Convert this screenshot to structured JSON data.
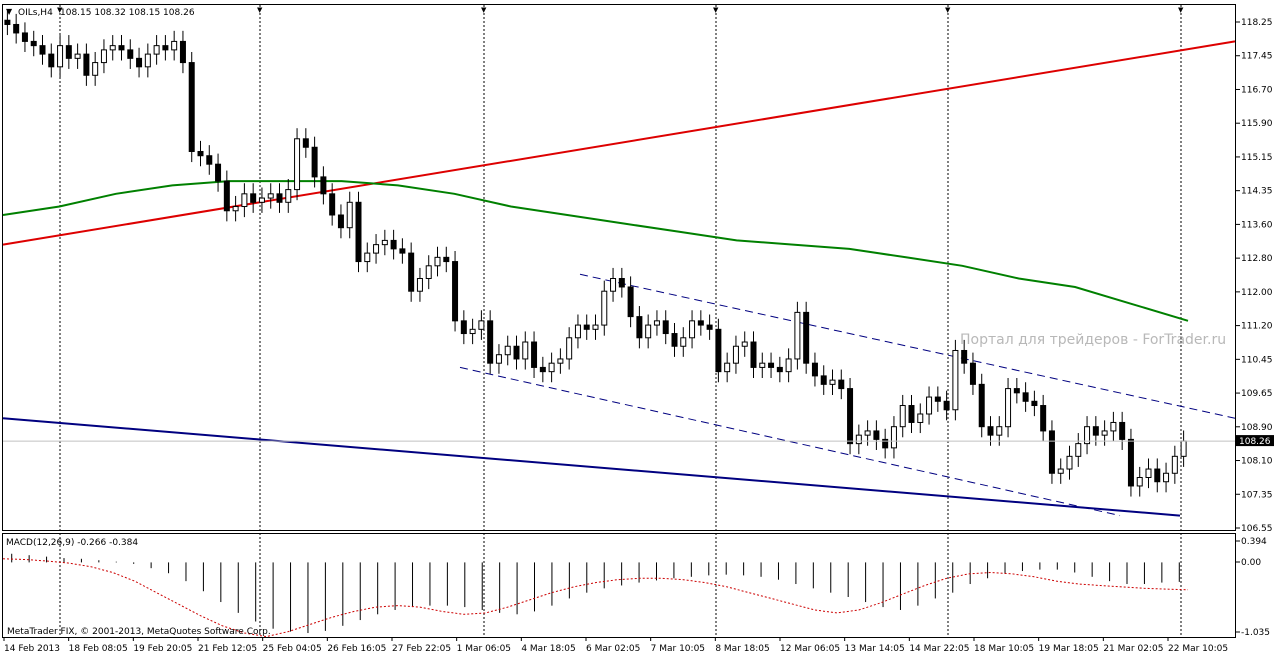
{
  "header": {
    "symbol_label": "OILs,H4",
    "ohlc_label": "108.15 108.32 108.15 108.26"
  },
  "watermark": "Портал для трейдеров - ForTrader.ru",
  "copyright": "MetaTrader FIX, © 2001-2013, MetaQuotes Software Corp.",
  "colors": {
    "background": "#ffffff",
    "candle": "#000000",
    "ma_line": "#008000",
    "trend_up": "#dd0000",
    "trend_down": "#000080",
    "channel": "#000080",
    "macd_signal": "#cc0000"
  },
  "chart_data": [
    {
      "type": "candlestick",
      "title": "",
      "timeframe": "H4",
      "ylim": [
        106.16,
        118.56
      ],
      "price_ticks": [
        "118.25",
        "117.45",
        "116.70",
        "115.90",
        "115.15",
        "114.35",
        "113.60",
        "112.80",
        "112.00",
        "111.20",
        "110.45",
        "109.65",
        "108.90",
        "108.10",
        "107.35",
        "106.55"
      ],
      "current_price": 108.26,
      "current_price_label": "108.26",
      "x_labels": [
        "14 Feb 2013",
        "18 Feb 08:05",
        "19 Feb 20:05",
        "21 Feb 12:05",
        "25 Feb 04:05",
        "26 Feb 16:05",
        "27 Feb 22:05",
        "1 Mar 06:05",
        "4 Mar 18:05",
        "6 Mar 02:05",
        "7 Mar 10:05",
        "8 Mar 18:05",
        "12 Mar 06:05",
        "13 Mar 14:05",
        "14 Mar 22:05",
        "18 Mar 10:05",
        "19 Mar 18:05",
        "21 Mar 02:05",
        "22 Mar 10:05"
      ],
      "candles_close": [
        118.1,
        117.9,
        117.7,
        117.6,
        117.4,
        117.1,
        117.6,
        117.3,
        117.4,
        116.9,
        117.2,
        117.5,
        117.6,
        117.5,
        117.3,
        117.1,
        117.4,
        117.6,
        117.5,
        117.7,
        117.2,
        115.1,
        115.0,
        114.8,
        114.4,
        113.7,
        113.8,
        114.1,
        113.9,
        114.0,
        114.1,
        113.9,
        114.2,
        115.4,
        115.2,
        114.5,
        114.1,
        113.6,
        113.3,
        113.9,
        112.5,
        112.7,
        112.9,
        113.0,
        112.8,
        112.7,
        111.8,
        112.1,
        112.4,
        112.6,
        112.5,
        111.1,
        110.8,
        110.9,
        111.1,
        110.1,
        110.3,
        110.5,
        110.2,
        110.6,
        110.0,
        109.9,
        110.1,
        110.2,
        110.7,
        111.0,
        110.9,
        111.0,
        111.8,
        112.1,
        111.9,
        111.2,
        110.7,
        111.0,
        111.1,
        110.8,
        110.5,
        110.7,
        111.1,
        111.0,
        110.9,
        109.9,
        110.1,
        110.5,
        110.6,
        110.0,
        110.1,
        110.0,
        109.9,
        110.2,
        111.3,
        110.1,
        109.8,
        109.6,
        109.7,
        109.5,
        108.2,
        108.4,
        108.5,
        108.3,
        108.1,
        108.6,
        109.1,
        108.7,
        108.9,
        109.3,
        109.2,
        109.0,
        110.4,
        110.1,
        109.6,
        108.6,
        108.4,
        108.6,
        109.5,
        109.4,
        109.2,
        109.1,
        108.5,
        107.5,
        107.6,
        107.9,
        108.2,
        108.6,
        108.4,
        108.5,
        108.7,
        108.3,
        107.2,
        107.4,
        107.6,
        107.3,
        107.5,
        107.9,
        108.26
      ],
      "moving_average": {
        "name": "",
        "values": [
          113.6,
          113.8,
          114.1,
          114.3,
          114.4,
          114.4,
          114.4,
          114.3,
          114.1,
          113.8,
          113.6,
          113.4,
          113.2,
          113.0,
          112.9,
          112.8,
          112.6,
          112.4,
          112.1,
          111.9,
          111.5,
          111.1
        ]
      },
      "trend_lines": [
        {
          "name": "",
          "from": 112.9,
          "to": 117.7
        },
        {
          "name": "",
          "from": 108.8,
          "to": 106.5
        }
      ],
      "channel": {
        "upper": [
          112.2,
          108.8
        ],
        "lower": [
          110.0,
          106.5
        ]
      }
    },
    {
      "type": "bar",
      "title": "MACD(12,26,9) -0.266 -0.384",
      "ylim": [
        -1.035,
        0.394
      ],
      "y_ticks": [
        "0.394",
        "0.00",
        "-1.035"
      ],
      "macd_values": [
        0.12,
        0.1,
        0.08,
        0.06,
        0.05,
        0.03,
        0.01,
        -0.02,
        -0.08,
        -0.15,
        -0.26,
        -0.4,
        -0.55,
        -0.7,
        -0.82,
        -0.92,
        -0.96,
        -0.98,
        -0.95,
        -0.88,
        -0.8,
        -0.72,
        -0.66,
        -0.62,
        -0.6,
        -0.6,
        -0.62,
        -0.66,
        -0.7,
        -0.72,
        -0.68,
        -0.6,
        -0.5,
        -0.42,
        -0.36,
        -0.32,
        -0.28,
        -0.25,
        -0.22,
        -0.2,
        -0.18,
        -0.17,
        -0.18,
        -0.2,
        -0.24,
        -0.3,
        -0.36,
        -0.42,
        -0.48,
        -0.55,
        -0.62,
        -0.66,
        -0.6,
        -0.5,
        -0.42,
        -0.3,
        -0.22,
        -0.16,
        -0.12,
        -0.1,
        -0.1,
        -0.14,
        -0.2,
        -0.26,
        -0.3,
        -0.3,
        -0.28,
        -0.27
      ],
      "signal_values": [
        0.05,
        0.04,
        0.02,
        -0.01,
        -0.06,
        -0.14,
        -0.26,
        -0.42,
        -0.58,
        -0.74,
        -0.88,
        -0.98,
        -1.03,
        -0.96,
        -0.86,
        -0.76,
        -0.68,
        -0.62,
        -0.6,
        -0.62,
        -0.68,
        -0.72,
        -0.7,
        -0.62,
        -0.52,
        -0.42,
        -0.34,
        -0.28,
        -0.24,
        -0.22,
        -0.22,
        -0.24,
        -0.28,
        -0.34,
        -0.42,
        -0.5,
        -0.58,
        -0.66,
        -0.7,
        -0.66,
        -0.56,
        -0.44,
        -0.32,
        -0.22,
        -0.16,
        -0.14,
        -0.16,
        -0.2,
        -0.26,
        -0.3,
        -0.32,
        -0.34,
        -0.36,
        -0.37,
        -0.38
      ]
    }
  ]
}
